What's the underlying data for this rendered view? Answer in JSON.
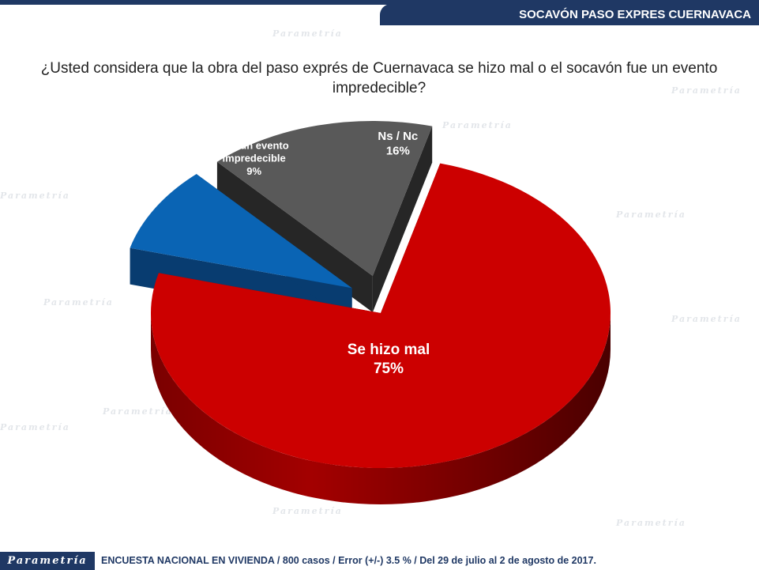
{
  "header": {
    "title": "SOCAVÓN PASO EXPRES CUERNAVACA"
  },
  "question": "¿Usted considera que la obra del paso exprés de Cuernavaca se hizo mal o el socavón fue un evento impredecible?",
  "footer": {
    "logo": "Parametría",
    "note": "ENCUESTA NACIONAL EN VIVIENDA / 800 casos / Error (+/-) 3.5 % / Del 29 de julio al 2 de agosto de 2017."
  },
  "background_watermark": "Parametría",
  "chart_data": {
    "type": "pie",
    "style": "3d-exploded",
    "slices": [
      {
        "label": "Se hizo mal",
        "value": 75,
        "value_label": "75%",
        "color": "#cc0000",
        "side_color": "#6e0000"
      },
      {
        "label": "Fue un evento impredecible",
        "value": 9,
        "value_label": "9%",
        "color": "#0a64b4",
        "side_color": "#083c70"
      },
      {
        "label": "Ns / Nc",
        "value": 16,
        "value_label": "16%",
        "color": "#595959",
        "side_color": "#262626"
      }
    ]
  }
}
